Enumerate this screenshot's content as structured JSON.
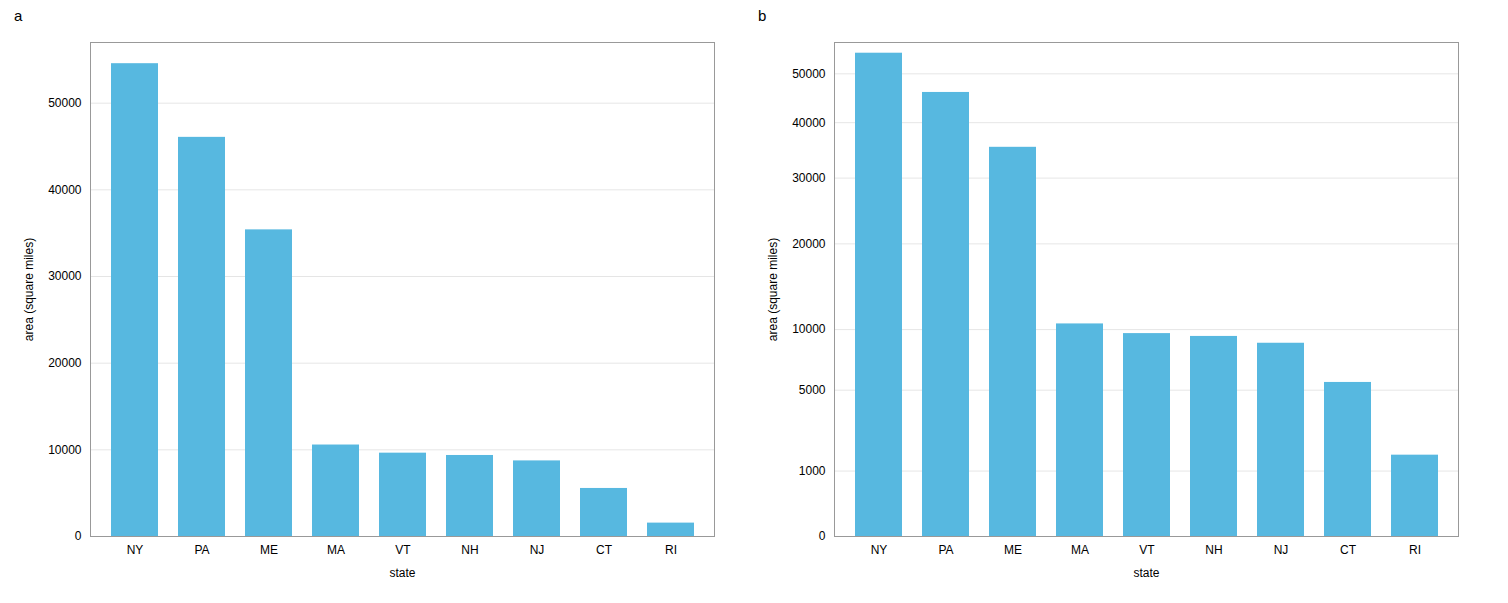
{
  "chart_data": [
    {
      "type": "bar",
      "title": "a",
      "categories": [
        "NY",
        "PA",
        "ME",
        "MA",
        "VT",
        "NH",
        "NJ",
        "CT",
        "RI"
      ],
      "values": [
        54555,
        46055,
        35380,
        10555,
        9616,
        9349,
        8723,
        5543,
        1545
      ],
      "color": "#57b8e0",
      "x_label": "state",
      "y_label": "area (square miles)",
      "ylim": [
        0,
        57000
      ],
      "yticks": [
        0,
        10000,
        20000,
        30000,
        40000,
        50000
      ],
      "grid": true
    },
    {
      "type": "bar",
      "title": "b",
      "categories": [
        "NY",
        "PA",
        "ME",
        "MA",
        "VT",
        "NH",
        "NJ",
        "CT",
        "RI"
      ],
      "values": [
        54555,
        46055,
        35380,
        10555,
        9616,
        9349,
        8723,
        5543,
        1545
      ],
      "color": "#57b8e0",
      "x_label": "state",
      "y_label": "area (square miles)",
      "ylim": [
        0,
        57000
      ],
      "yticks": [
        0,
        1000,
        5000,
        10000,
        20000,
        30000,
        40000,
        50000
      ],
      "grid": true
    }
  ]
}
